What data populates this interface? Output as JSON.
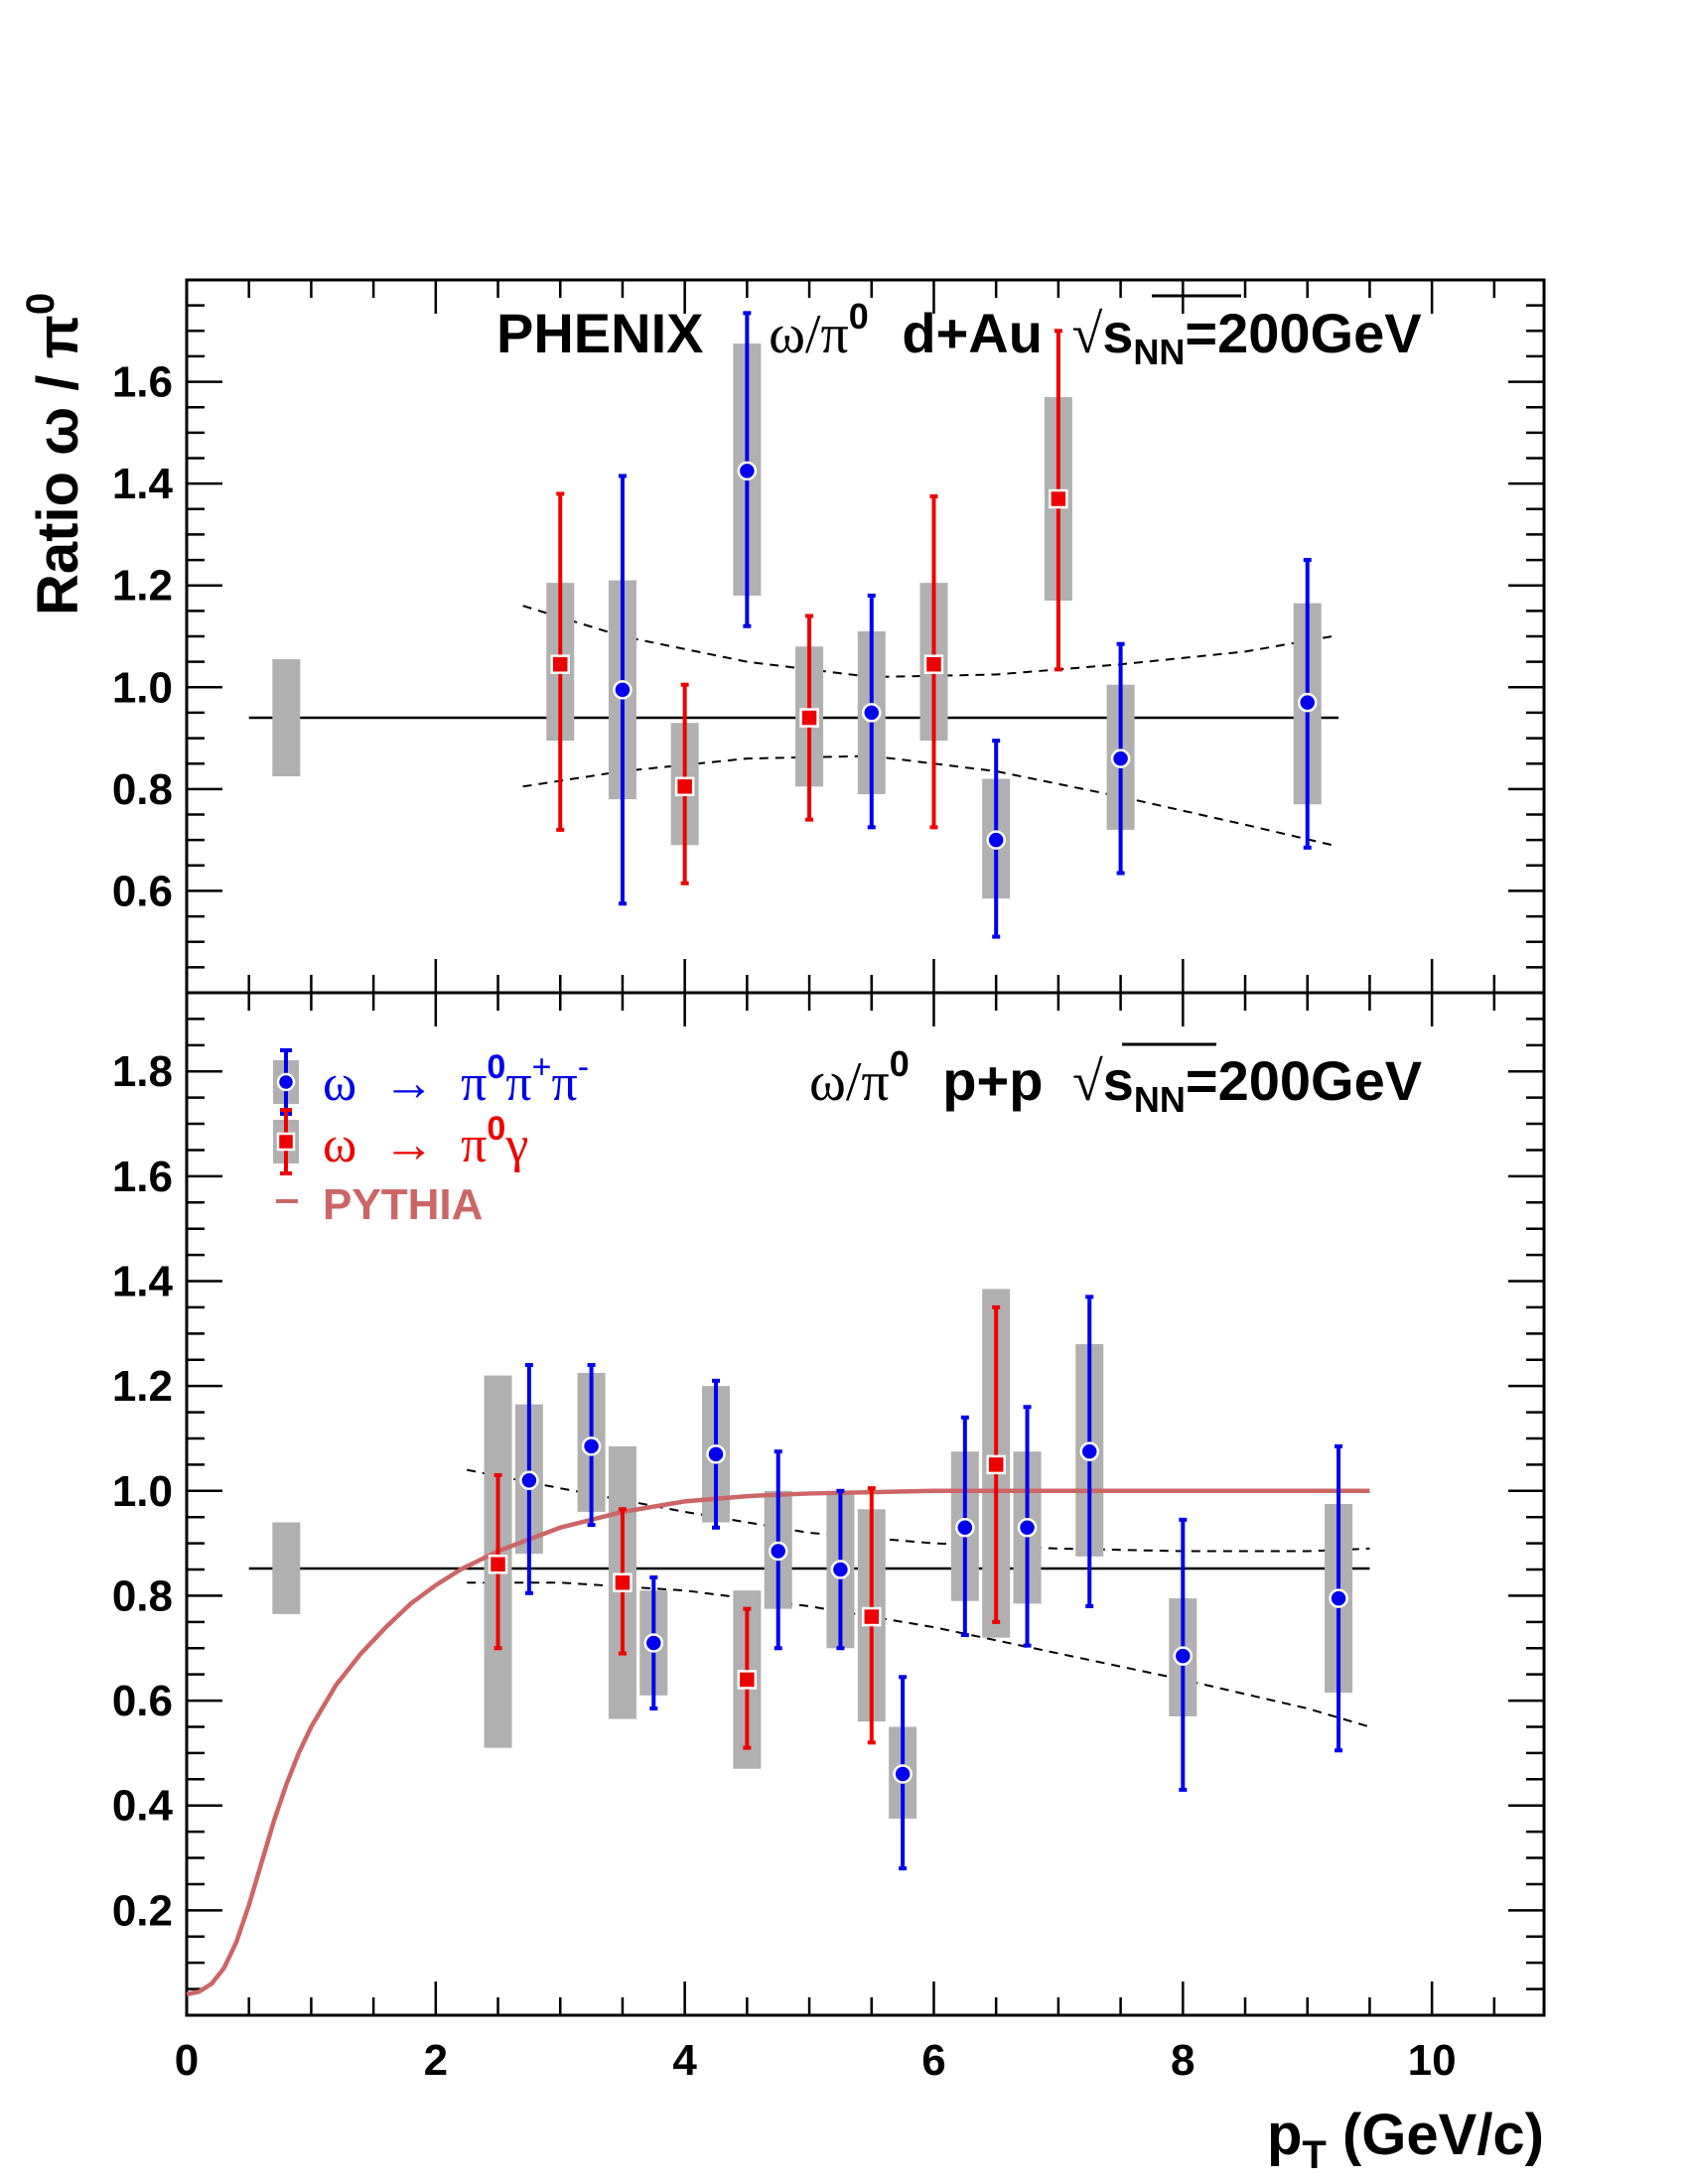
{
  "chart_data": [
    {
      "type": "scatter",
      "panel": "top",
      "annotation": {
        "experiment": "PHENIX",
        "ratio": "ω/π",
        "ratio_sup": "0",
        "system": "d+Au",
        "sqrt": "√",
        "energy_s": "s",
        "energy_sub": "NN",
        "energy_value": "=200GeV"
      },
      "ylabel": {
        "text": "Ratio ω / π",
        "sup": "0"
      },
      "xlim": [
        0,
        10.9
      ],
      "ylim": [
        0.4,
        1.8
      ],
      "yticks": [
        0.6,
        0.8,
        1.0,
        1.2,
        1.4,
        1.6
      ],
      "ytick_labels": [
        "0.6",
        "0.8",
        "1.0",
        "1.2",
        "1.4",
        "1.6"
      ],
      "fit_value": 0.94,
      "fit_range": [
        0.5,
        9.25
      ],
      "norm_box": {
        "x": 0.8,
        "ylo": 0.825,
        "yhi": 1.055
      },
      "fit_band_upper": [
        [
          2.7,
          1.16
        ],
        [
          3.5,
          1.1
        ],
        [
          4.5,
          1.05
        ],
        [
          5.5,
          1.02
        ],
        [
          6.5,
          1.025
        ],
        [
          7.5,
          1.045
        ],
        [
          8.5,
          1.07
        ],
        [
          9.2,
          1.1
        ]
      ],
      "fit_band_lower": [
        [
          2.7,
          0.805
        ],
        [
          3.5,
          0.835
        ],
        [
          4.5,
          0.86
        ],
        [
          5.5,
          0.865
        ],
        [
          6.5,
          0.835
        ],
        [
          7.5,
          0.785
        ],
        [
          8.5,
          0.73
        ],
        [
          9.2,
          0.69
        ]
      ],
      "series": [
        {
          "name": "ω → π0π+π-",
          "marker": "circle",
          "color": "#0000ee",
          "points": [
            {
              "x": 3.5,
              "y": 0.995,
              "elo": 0.575,
              "ehi": 1.415,
              "slo": 0.78,
              "shi": 1.21
            },
            {
              "x": 4.5,
              "y": 1.425,
              "elo": 1.12,
              "ehi": 1.735,
              "slo": 1.18,
              "shi": 1.675
            },
            {
              "x": 5.5,
              "y": 0.95,
              "elo": 0.725,
              "ehi": 1.18,
              "slo": 0.79,
              "shi": 1.11
            },
            {
              "x": 6.5,
              "y": 0.7,
              "elo": 0.51,
              "ehi": 0.895,
              "slo": 0.585,
              "shi": 0.82
            },
            {
              "x": 7.5,
              "y": 0.86,
              "elo": 0.635,
              "ehi": 1.085,
              "slo": 0.72,
              "shi": 1.005
            },
            {
              "x": 9.0,
              "y": 0.97,
              "elo": 0.685,
              "ehi": 1.25,
              "slo": 0.77,
              "shi": 1.165
            }
          ]
        },
        {
          "name": "ω → π0γ",
          "marker": "square",
          "color": "#ee0000",
          "points": [
            {
              "x": 3.0,
              "y": 1.045,
              "elo": 0.72,
              "ehi": 1.38,
              "slo": 0.895,
              "shi": 1.205
            },
            {
              "x": 4.0,
              "y": 0.805,
              "elo": 0.615,
              "ehi": 1.005,
              "slo": 0.69,
              "shi": 0.93
            },
            {
              "x": 5.0,
              "y": 0.94,
              "elo": 0.74,
              "ehi": 1.14,
              "slo": 0.805,
              "shi": 1.08
            },
            {
              "x": 6.0,
              "y": 1.045,
              "elo": 0.725,
              "ehi": 1.375,
              "slo": 0.895,
              "shi": 1.205
            },
            {
              "x": 7.0,
              "y": 1.37,
              "elo": 1.035,
              "ehi": 1.7,
              "slo": 1.17,
              "shi": 1.57
            }
          ]
        }
      ]
    },
    {
      "type": "scatter",
      "panel": "bottom",
      "annotation": {
        "ratio": "ω/π",
        "ratio_sup": "0",
        "system": "p+p",
        "sqrt": "√",
        "energy_s": "s",
        "energy_sub": "NN",
        "energy_value": "=200GeV"
      },
      "xlabel": {
        "p": "p",
        "sub": "T",
        "units": " (GeV/c)"
      },
      "xlim": [
        0,
        10.9
      ],
      "ylim": [
        0,
        1.95
      ],
      "xticks": [
        0,
        2,
        4,
        6,
        8,
        10
      ],
      "xtick_labels": [
        "0",
        "2",
        "4",
        "6",
        "8",
        "10"
      ],
      "yticks": [
        0.2,
        0.4,
        0.6,
        0.8,
        1.0,
        1.2,
        1.4,
        1.6,
        1.8
      ],
      "ytick_labels": [
        "0.2",
        "0.4",
        "0.6",
        "0.8",
        "1.0",
        "1.2",
        "1.4",
        "1.6",
        "1.8"
      ],
      "fit_value": 0.852,
      "fit_range": [
        0.5,
        9.5
      ],
      "norm_box": {
        "x": 0.8,
        "ylo": 0.765,
        "yhi": 0.94
      },
      "fit_band_upper": [
        [
          2.25,
          1.04
        ],
        [
          3.0,
          1.005
        ],
        [
          4.0,
          0.96
        ],
        [
          5.0,
          0.92
        ],
        [
          6.0,
          0.9
        ],
        [
          7.0,
          0.89
        ],
        [
          8.0,
          0.885
        ],
        [
          9.0,
          0.885
        ],
        [
          9.5,
          0.89
        ]
      ],
      "fit_band_lower": [
        [
          2.25,
          0.825
        ],
        [
          3.0,
          0.825
        ],
        [
          4.0,
          0.81
        ],
        [
          5.0,
          0.78
        ],
        [
          6.0,
          0.74
        ],
        [
          7.0,
          0.69
        ],
        [
          8.0,
          0.64
        ],
        [
          9.0,
          0.585
        ],
        [
          9.5,
          0.55
        ]
      ],
      "pythia": {
        "name": "PYTHIA",
        "color": "#cc6666",
        "curve": [
          [
            0,
            0.04
          ],
          [
            0.1,
            0.045
          ],
          [
            0.2,
            0.06
          ],
          [
            0.3,
            0.09
          ],
          [
            0.4,
            0.14
          ],
          [
            0.5,
            0.21
          ],
          [
            0.6,
            0.29
          ],
          [
            0.7,
            0.37
          ],
          [
            0.8,
            0.44
          ],
          [
            0.9,
            0.5
          ],
          [
            1.0,
            0.55
          ],
          [
            1.2,
            0.63
          ],
          [
            1.4,
            0.69
          ],
          [
            1.6,
            0.74
          ],
          [
            1.8,
            0.785
          ],
          [
            2.0,
            0.82
          ],
          [
            2.2,
            0.85
          ],
          [
            2.5,
            0.885
          ],
          [
            3.0,
            0.93
          ],
          [
            3.5,
            0.96
          ],
          [
            4.0,
            0.98
          ],
          [
            4.5,
            0.99
          ],
          [
            5.0,
            0.995
          ],
          [
            6.0,
            1.0
          ],
          [
            7.0,
            1.0
          ],
          [
            8.0,
            1.0
          ],
          [
            9.0,
            1.0
          ],
          [
            9.5,
            1.0
          ]
        ]
      },
      "series": [
        {
          "name": "ω → π0π+π-",
          "marker": "circle",
          "color": "#0000ee",
          "points": [
            {
              "x": 2.75,
              "y": 1.02,
              "elo": 0.805,
              "ehi": 1.24,
              "slo": 0.88,
              "shi": 1.165
            },
            {
              "x": 3.25,
              "y": 1.085,
              "elo": 0.935,
              "ehi": 1.24,
              "slo": 0.96,
              "shi": 1.225
            },
            {
              "x": 3.75,
              "y": 0.71,
              "elo": 0.585,
              "ehi": 0.835,
              "slo": 0.61,
              "shi": 0.81
            },
            {
              "x": 4.25,
              "y": 1.07,
              "elo": 0.93,
              "ehi": 1.21,
              "slo": 0.94,
              "shi": 1.2
            },
            {
              "x": 4.75,
              "y": 0.885,
              "elo": 0.7,
              "ehi": 1.075,
              "slo": 0.775,
              "shi": 1.0
            },
            {
              "x": 5.25,
              "y": 0.85,
              "elo": 0.7,
              "ehi": 1.0,
              "slo": 0.7,
              "shi": 1.0
            },
            {
              "x": 5.75,
              "y": 0.46,
              "elo": 0.28,
              "ehi": 0.645,
              "slo": 0.375,
              "shi": 0.55
            },
            {
              "x": 6.25,
              "y": 0.93,
              "elo": 0.725,
              "ehi": 1.14,
              "slo": 0.79,
              "shi": 1.075
            },
            {
              "x": 6.75,
              "y": 0.93,
              "elo": 0.705,
              "ehi": 1.16,
              "slo": 0.785,
              "shi": 1.075
            },
            {
              "x": 7.25,
              "y": 1.075,
              "elo": 0.78,
              "ehi": 1.37,
              "slo": 0.875,
              "shi": 1.28
            },
            {
              "x": 8.0,
              "y": 0.685,
              "elo": 0.43,
              "ehi": 0.945,
              "slo": 0.57,
              "shi": 0.795
            },
            {
              "x": 9.25,
              "y": 0.795,
              "elo": 0.505,
              "ehi": 1.085,
              "slo": 0.615,
              "shi": 0.975
            }
          ]
        },
        {
          "name": "ω → π0γ",
          "marker": "square",
          "color": "#ee0000",
          "points": [
            {
              "x": 2.5,
              "y": 0.86,
              "elo": 0.7,
              "ehi": 1.03,
              "slo": 0.51,
              "shi": 1.22
            },
            {
              "x": 3.5,
              "y": 0.825,
              "elo": 0.69,
              "ehi": 0.965,
              "slo": 0.565,
              "shi": 1.085
            },
            {
              "x": 4.5,
              "y": 0.64,
              "elo": 0.51,
              "ehi": 0.775,
              "slo": 0.47,
              "shi": 0.81
            },
            {
              "x": 5.5,
              "y": 0.76,
              "elo": 0.52,
              "ehi": 1.005,
              "slo": 0.56,
              "shi": 0.965
            },
            {
              "x": 6.5,
              "y": 1.05,
              "elo": 0.75,
              "ehi": 1.35,
              "slo": 0.72,
              "shi": 1.385
            }
          ]
        }
      ],
      "legend": {
        "placement": "top-left",
        "entries": [
          {
            "omega": "ω",
            "arrow": "→",
            "pi": "π",
            "decay_sup": "0",
            "rest": "π",
            "rest_sup": "+",
            "rest2": "π",
            "rest2_sup": "-",
            "color": "#0000ee"
          },
          {
            "omega": "ω",
            "arrow": "→",
            "pi": "π",
            "decay_sup": "0",
            "rest": "γ",
            "color": "#ee0000"
          },
          {
            "label": "PYTHIA",
            "color": "#cc6666"
          }
        ]
      }
    }
  ]
}
